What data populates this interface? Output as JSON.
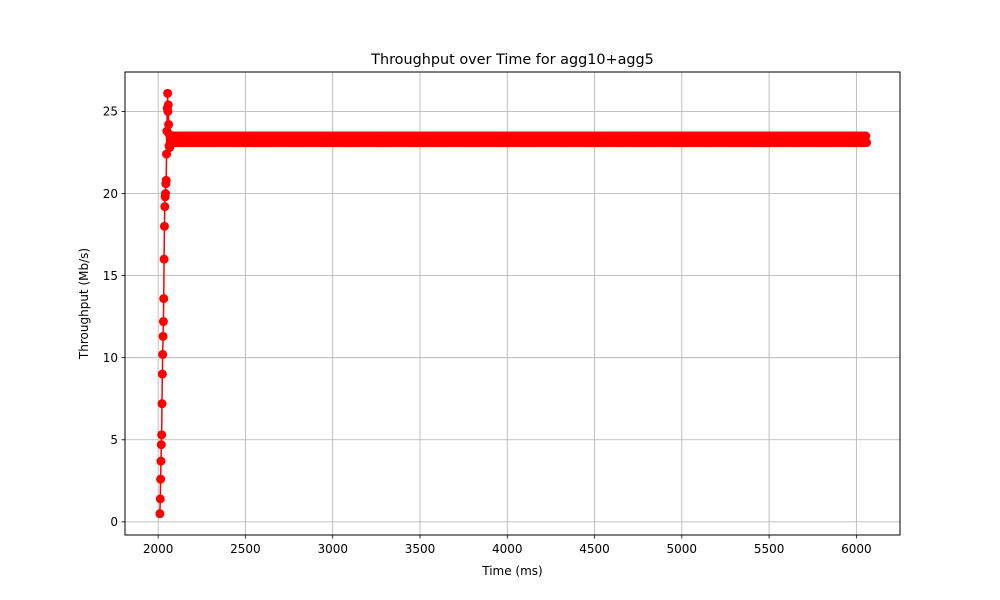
{
  "chart_data": {
    "type": "line",
    "title": "Throughput over Time for agg10+agg5",
    "xlabel": "Time (ms)",
    "ylabel": "Throughput (Mb/s)",
    "xlim": [
      1810,
      6250
    ],
    "ylim": [
      -0.8,
      27.4
    ],
    "xticks": [
      2000,
      2500,
      3000,
      3500,
      4000,
      4500,
      5000,
      5500,
      6000
    ],
    "yticks": [
      0,
      5,
      10,
      15,
      20,
      25
    ],
    "grid": true,
    "legend": "none",
    "series": [
      {
        "color": "#ff0000",
        "marker": "circle",
        "ramp": {
          "x": [
            2010,
            2012,
            2014,
            2016,
            2018,
            2020,
            2022,
            2024,
            2026,
            2028,
            2030,
            2032,
            2034,
            2036,
            2038,
            2040,
            2042,
            2044,
            2046,
            2048,
            2050,
            2052,
            2054,
            2056,
            2058,
            2060,
            2062,
            2064,
            2066,
            2068,
            2070
          ],
          "y": [
            0.5,
            1.4,
            2.6,
            3.7,
            4.7,
            5.3,
            7.2,
            9.0,
            10.2,
            11.3,
            12.2,
            13.6,
            16.0,
            18.0,
            19.2,
            19.8,
            20.0,
            20.6,
            20.8,
            22.4,
            23.8,
            25.2,
            26.1,
            25.0,
            25.4,
            24.2,
            22.9,
            23.6,
            22.8,
            23.4,
            23.1
          ]
        },
        "steady": {
          "x_start": 2070,
          "x_end": 6060,
          "step": 4,
          "y_low": 23.1,
          "y_high": 23.5
        }
      }
    ]
  }
}
